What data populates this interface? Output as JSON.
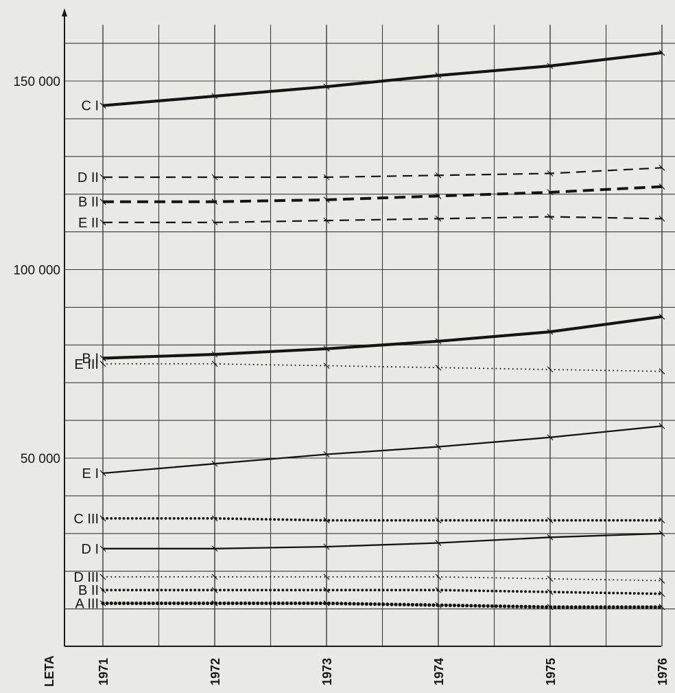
{
  "chart_data": {
    "type": "line",
    "title": "",
    "xlabel": "LETA",
    "ylabel": "",
    "x": [
      "1971",
      "1972",
      "1973",
      "1974",
      "1975",
      "1976"
    ],
    "yticks": [
      "150 000",
      "100 000",
      "50 000"
    ],
    "ytick_values": [
      150000,
      100000,
      50000
    ],
    "ylim": [
      0,
      170000
    ],
    "grid": true,
    "series": [
      {
        "name": "C I",
        "style": "solid",
        "weight": "heavy",
        "values": [
          143500,
          146000,
          148500,
          151500,
          154000,
          157500
        ]
      },
      {
        "name": "D II",
        "style": "dashed",
        "weight": "normal",
        "values": [
          124500,
          124500,
          124500,
          125000,
          125500,
          127000
        ]
      },
      {
        "name": "B II",
        "style": "dashed",
        "weight": "heavy",
        "values": [
          118000,
          118000,
          118500,
          119500,
          120500,
          122000
        ]
      },
      {
        "name": "E II",
        "style": "dashed",
        "weight": "normal",
        "values": [
          112500,
          112500,
          113000,
          113500,
          114000,
          113500
        ]
      },
      {
        "name": "B I",
        "style": "solid",
        "weight": "heavy",
        "values": [
          76500,
          77500,
          79000,
          81000,
          83500,
          87500
        ]
      },
      {
        "name": "E III",
        "style": "dotted",
        "weight": "light",
        "values": [
          75000,
          75000,
          74500,
          74000,
          73500,
          73000
        ]
      },
      {
        "name": "E I",
        "style": "solid",
        "weight": "normal",
        "values": [
          46000,
          48500,
          51000,
          53000,
          55500,
          58500
        ]
      },
      {
        "name": "C III",
        "style": "dotted",
        "weight": "normal",
        "values": [
          34000,
          34000,
          33500,
          33500,
          33500,
          33500
        ]
      },
      {
        "name": "D I",
        "style": "solid",
        "weight": "normal",
        "values": [
          26000,
          26000,
          26500,
          27500,
          29000,
          30000
        ]
      },
      {
        "name": "D III",
        "style": "dotted",
        "weight": "light",
        "values": [
          18500,
          18500,
          18500,
          18500,
          18000,
          17500
        ]
      },
      {
        "name": "B II",
        "style": "dotted",
        "weight": "normal",
        "values": [
          15000,
          15000,
          15000,
          15000,
          14500,
          14000
        ]
      },
      {
        "name": "A III",
        "style": "dotted",
        "weight": "heavy",
        "values": [
          11500,
          11500,
          11500,
          11000,
          10500,
          10500
        ]
      }
    ]
  }
}
